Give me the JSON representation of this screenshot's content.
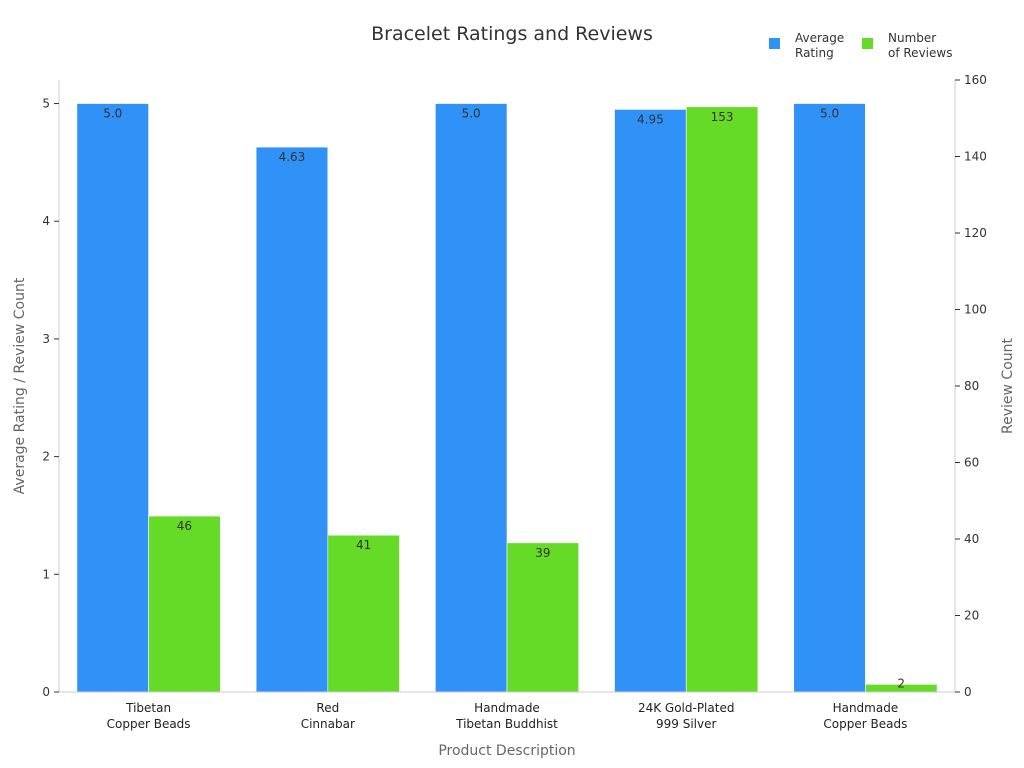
{
  "chart_data": {
    "type": "bar",
    "title": "Bracelet Ratings and Reviews",
    "xlabel": "Product Description",
    "ylabel_left": "Average Rating / Review Count",
    "ylabel_right": "Review Count",
    "categories": [
      [
        "Tibetan",
        "Copper Beads"
      ],
      [
        "Red",
        "Cinnabar"
      ],
      [
        "Handmade",
        "Tibetan Buddhist"
      ],
      [
        "24K Gold-Plated",
        "999 Silver"
      ],
      [
        "Handmade",
        "Copper Beads"
      ]
    ],
    "series": [
      {
        "name": [
          "Average",
          "Rating"
        ],
        "axis": "left",
        "color": "#3092f7",
        "values": [
          5.0,
          4.63,
          5.0,
          4.95,
          5.0
        ],
        "labels": [
          "5.0",
          "4.63",
          "5.0",
          "4.95",
          "5.0"
        ]
      },
      {
        "name": [
          "Number",
          "of Reviews"
        ],
        "axis": "right",
        "color": "#66db27",
        "values": [
          46,
          41,
          39,
          153,
          2
        ],
        "labels": [
          "46",
          "41",
          "39",
          "153",
          "2"
        ]
      }
    ],
    "y_left": {
      "min": 0,
      "max": 5.2,
      "ticks": [
        0,
        1,
        2,
        3,
        4,
        5
      ]
    },
    "y_right": {
      "min": 0,
      "max": 160,
      "ticks": [
        0,
        20,
        40,
        60,
        80,
        100,
        120,
        140,
        160
      ]
    },
    "legend": "top-right",
    "grid": false
  }
}
